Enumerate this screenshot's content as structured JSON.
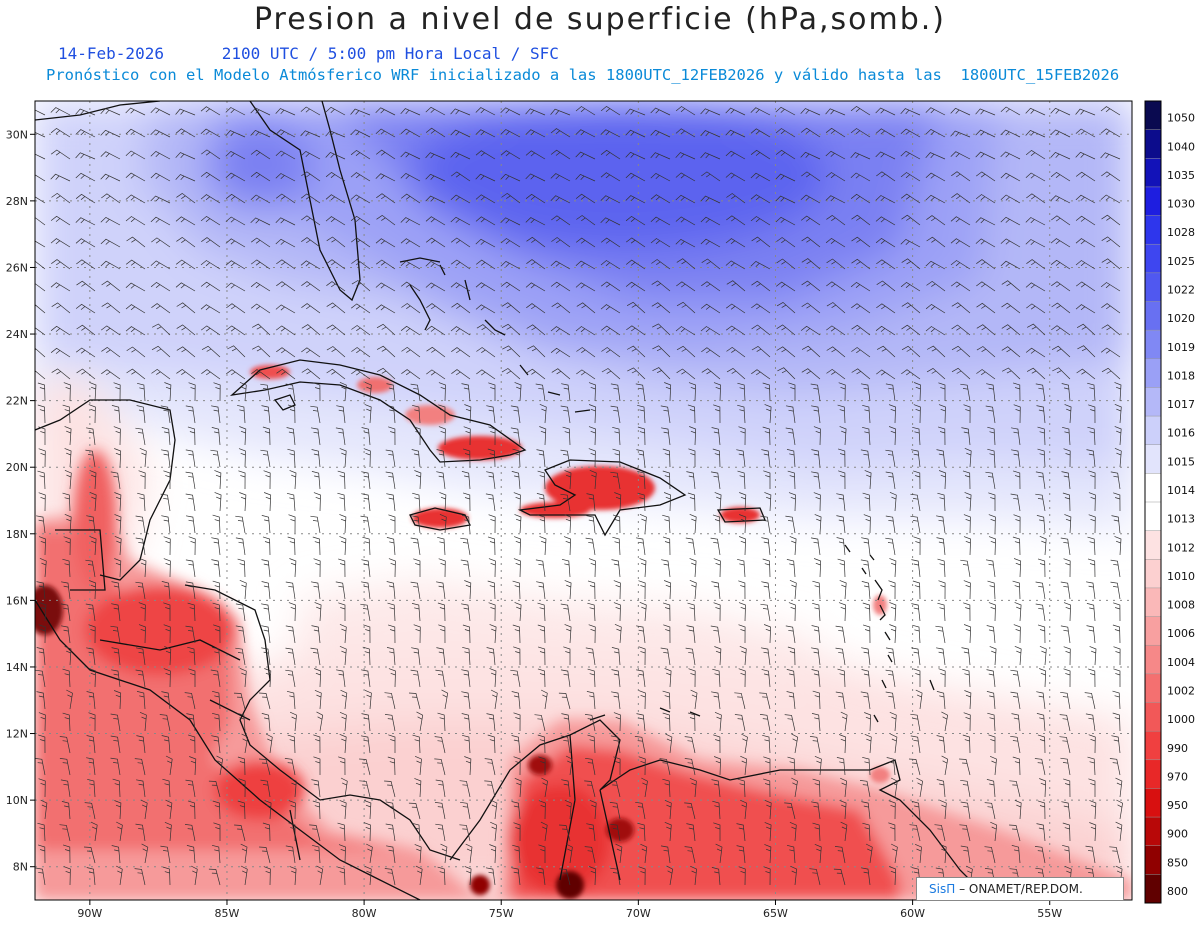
{
  "header": {
    "title": "Presion a nivel de superficie (hPa,somb.)",
    "date": "14-Feb-2026",
    "time": "2100 UTC / 5:00 pm Hora Local / SFC",
    "forecast": "Pronóstico con el Modelo Atmósferico WRF inicializado a las 1800UTC_12FEB2026 y válido hasta las  1800UTC_15FEB2026"
  },
  "map": {
    "lon_range": [
      -92,
      -52
    ],
    "lat_range": [
      7,
      31
    ],
    "lon_ticks": [
      "90W",
      "85W",
      "80W",
      "75W",
      "70W",
      "65W",
      "60W",
      "55W"
    ],
    "lat_ticks": [
      "30N",
      "28N",
      "26N",
      "24N",
      "22N",
      "20N",
      "18N",
      "16N",
      "14N",
      "12N",
      "10N",
      "8N"
    ],
    "grid": true,
    "variable": "surface pressure shaded, wind barbs"
  },
  "colorbar": {
    "levels": [
      "1050",
      "1040",
      "1035",
      "1030",
      "1028",
      "1025",
      "1022",
      "1020",
      "1019",
      "1018",
      "1017",
      "1016",
      "1015",
      "1014",
      "1013",
      "1012",
      "1010",
      "1008",
      "1006",
      "1004",
      "1002",
      "1000",
      "990",
      "970",
      "950",
      "900",
      "850",
      "800"
    ],
    "colors": [
      "#0a0a50",
      "#0c0c8c",
      "#1212b8",
      "#1e1ee0",
      "#2e36ec",
      "#3e46f0",
      "#5058f0",
      "#6870f2",
      "#8088f4",
      "#9aa0f6",
      "#b4b8f8",
      "#ccd0fa",
      "#e2e4fc",
      "#ffffff",
      "#ffffff",
      "#fde2e2",
      "#fcd0d0",
      "#fab8b8",
      "#f8a0a0",
      "#f68888",
      "#f47070",
      "#f25858",
      "#f04040",
      "#e82828",
      "#d81010",
      "#b80808",
      "#900000",
      "#600000"
    ]
  },
  "credit": {
    "brand": "SisΠ",
    "text": "– ONAMET/REP.DOM."
  }
}
